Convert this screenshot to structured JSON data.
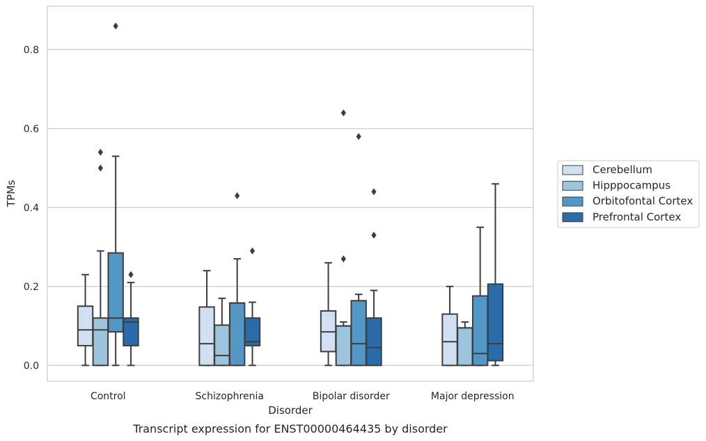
{
  "chart_data": {
    "type": "box",
    "caption": "Transcript expression for ENST00000464435 by disorder",
    "xlabel": "Disorder",
    "ylabel": "TPMs",
    "ylim": [
      -0.04,
      0.91
    ],
    "yticks": [
      0.0,
      0.2,
      0.4,
      0.6,
      0.8
    ],
    "ytick_labels": [
      "0.0",
      "0.2",
      "0.4",
      "0.6",
      "0.8"
    ],
    "grid": "horizontal",
    "legend_position": "right",
    "categories": [
      "Control",
      "Schizophrenia",
      "Bipolar disorder",
      "Major depression"
    ],
    "series": [
      {
        "name": "Cerebellum",
        "color": "#d0e0f2",
        "boxes": [
          {
            "whislo": 0.0,
            "q1": 0.05,
            "med": 0.09,
            "q3": 0.15,
            "whishi": 0.23,
            "fliers": []
          },
          {
            "whislo": 0.0,
            "q1": 0.0,
            "med": 0.055,
            "q3": 0.148,
            "whishi": 0.24,
            "fliers": []
          },
          {
            "whislo": 0.0,
            "q1": 0.035,
            "med": 0.085,
            "q3": 0.138,
            "whishi": 0.26,
            "fliers": []
          },
          {
            "whislo": 0.0,
            "q1": 0.0,
            "med": 0.06,
            "q3": 0.13,
            "whishi": 0.2,
            "fliers": []
          }
        ]
      },
      {
        "name": "Hipppocampus",
        "color": "#9cc4dc",
        "boxes": [
          {
            "whislo": 0.0,
            "q1": 0.0,
            "med": 0.09,
            "q3": 0.12,
            "whishi": 0.29,
            "fliers": [
              0.5,
              0.54
            ]
          },
          {
            "whislo": 0.0,
            "q1": 0.0,
            "med": 0.025,
            "q3": 0.102,
            "whishi": 0.17,
            "fliers": []
          },
          {
            "whislo": 0.0,
            "q1": 0.0,
            "med": 0.1,
            "q3": 0.1,
            "whishi": 0.11,
            "fliers": [
              0.27,
              0.64
            ]
          },
          {
            "whislo": 0.0,
            "q1": 0.0,
            "med": 0.095,
            "q3": 0.095,
            "whishi": 0.11,
            "fliers": []
          }
        ]
      },
      {
        "name": "Orbitofontal Cortex",
        "color": "#5397c6",
        "boxes": [
          {
            "whislo": 0.0,
            "q1": 0.085,
            "med": 0.12,
            "q3": 0.285,
            "whishi": 0.53,
            "fliers": [
              0.86
            ]
          },
          {
            "whislo": 0.0,
            "q1": 0.0,
            "med": 0.158,
            "q3": 0.158,
            "whishi": 0.27,
            "fliers": [
              0.43
            ]
          },
          {
            "whislo": 0.0,
            "q1": 0.0,
            "med": 0.055,
            "q3": 0.164,
            "whishi": 0.18,
            "fliers": [
              0.58
            ]
          },
          {
            "whislo": 0.0,
            "q1": 0.0,
            "med": 0.03,
            "q3": 0.176,
            "whishi": 0.35,
            "fliers": []
          }
        ]
      },
      {
        "name": "Prefrontal Cortex",
        "color": "#2a6caa",
        "boxes": [
          {
            "whislo": 0.0,
            "q1": 0.05,
            "med": 0.11,
            "q3": 0.12,
            "whishi": 0.21,
            "fliers": [
              0.23
            ]
          },
          {
            "whislo": 0.0,
            "q1": 0.05,
            "med": 0.06,
            "q3": 0.12,
            "whishi": 0.16,
            "fliers": [
              0.29
            ]
          },
          {
            "whislo": 0.0,
            "q1": 0.0,
            "med": 0.045,
            "q3": 0.12,
            "whishi": 0.19,
            "fliers": [
              0.33,
              0.44
            ]
          },
          {
            "whislo": 0.0,
            "q1": 0.012,
            "med": 0.055,
            "q3": 0.206,
            "whishi": 0.46,
            "fliers": []
          }
        ]
      }
    ]
  }
}
